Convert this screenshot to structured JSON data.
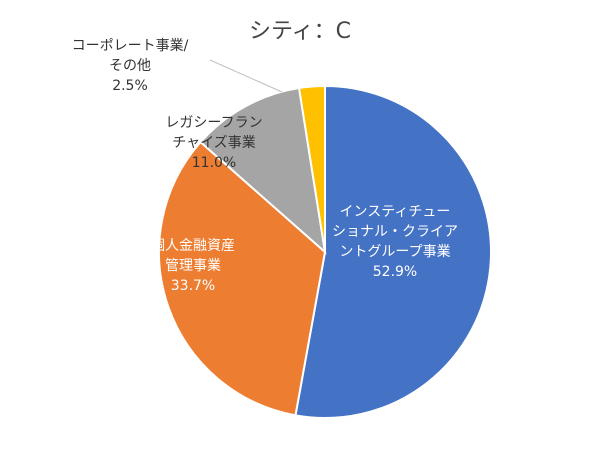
{
  "chart_data": {
    "type": "pie",
    "title": "シティ：C",
    "slices": [
      {
        "label_lines": [
          "インスティチュー",
          "ショナル・クライア",
          "ントグループ事業"
        ],
        "value_label": "52.9%",
        "value": 52.9,
        "color": "#4472C4"
      },
      {
        "label_lines": [
          "個人金融資産",
          "管理事業"
        ],
        "value_label": "33.7%",
        "value": 33.7,
        "color": "#ED7D31"
      },
      {
        "label_lines": [
          "レガシーフラン",
          "チャイズ事業"
        ],
        "value_label": "11.0%",
        "value": 11.0,
        "color": "#A5A5A5"
      },
      {
        "label_lines": [
          "コーポレート事業/",
          "その他"
        ],
        "value_label": "2.5%",
        "value": 2.5,
        "color": "#FFC000"
      }
    ]
  }
}
